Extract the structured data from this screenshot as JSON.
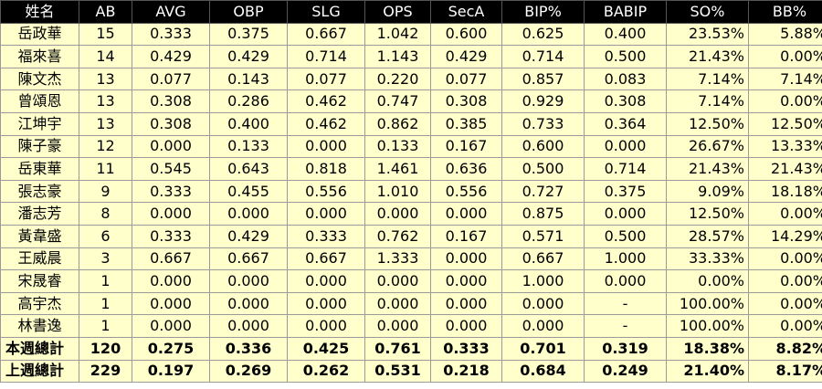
{
  "colors": {
    "header_bg": "#000000",
    "header_text": "#ffffff",
    "row_bg": "#ffffcc",
    "this_week_total_bg": "#1f497d",
    "last_week_total_bg": "#a5520a"
  },
  "table": {
    "headers": [
      "姓名",
      "AB",
      "AVG",
      "OBP",
      "SLG",
      "OPS",
      "SecA",
      "BIP%",
      "BABIP",
      "SO%",
      "BB%"
    ],
    "rows": [
      [
        "岳政華",
        "15",
        "0.333",
        "0.375",
        "0.667",
        "1.042",
        "0.600",
        "0.625",
        "0.400",
        "23.53%",
        "5.88%"
      ],
      [
        "福來喜",
        "14",
        "0.429",
        "0.429",
        "0.714",
        "1.143",
        "0.429",
        "0.714",
        "0.500",
        "21.43%",
        "0.00%"
      ],
      [
        "陳文杰",
        "13",
        "0.077",
        "0.143",
        "0.077",
        "0.220",
        "0.077",
        "0.857",
        "0.083",
        "7.14%",
        "7.14%"
      ],
      [
        "曾頌恩",
        "13",
        "0.308",
        "0.286",
        "0.462",
        "0.747",
        "0.308",
        "0.929",
        "0.308",
        "7.14%",
        "0.00%"
      ],
      [
        "江坤宇",
        "13",
        "0.308",
        "0.400",
        "0.462",
        "0.862",
        "0.385",
        "0.733",
        "0.364",
        "12.50%",
        "12.50%"
      ],
      [
        "陳子豪",
        "12",
        "0.000",
        "0.133",
        "0.000",
        "0.133",
        "0.167",
        "0.600",
        "0.000",
        "26.67%",
        "13.33%"
      ],
      [
        "岳東華",
        "11",
        "0.545",
        "0.643",
        "0.818",
        "1.461",
        "0.636",
        "0.500",
        "0.714",
        "21.43%",
        "21.43%"
      ],
      [
        "張志豪",
        "9",
        "0.333",
        "0.455",
        "0.556",
        "1.010",
        "0.556",
        "0.727",
        "0.375",
        "9.09%",
        "18.18%"
      ],
      [
        "潘志芳",
        "8",
        "0.000",
        "0.000",
        "0.000",
        "0.000",
        "0.000",
        "0.875",
        "0.000",
        "12.50%",
        "0.00%"
      ],
      [
        "黃韋盛",
        "6",
        "0.333",
        "0.429",
        "0.333",
        "0.762",
        "0.167",
        "0.571",
        "0.500",
        "28.57%",
        "14.29%"
      ],
      [
        "王威晨",
        "3",
        "0.667",
        "0.667",
        "0.667",
        "1.333",
        "0.000",
        "0.667",
        "1.000",
        "33.33%",
        "0.00%"
      ],
      [
        "宋晟睿",
        "1",
        "0.000",
        "0.000",
        "0.000",
        "0.000",
        "0.000",
        "1.000",
        "0.000",
        "0.00%",
        "0.00%"
      ],
      [
        "高宇杰",
        "1",
        "0.000",
        "0.000",
        "0.000",
        "0.000",
        "0.000",
        "0.000",
        "-",
        "100.00%",
        "0.00%"
      ],
      [
        "林書逸",
        "1",
        "0.000",
        "0.000",
        "0.000",
        "0.000",
        "0.000",
        "0.000",
        "-",
        "100.00%",
        "0.00%"
      ]
    ],
    "totals": [
      [
        "本週總計",
        "120",
        "0.275",
        "0.336",
        "0.425",
        "0.761",
        "0.333",
        "0.701",
        "0.319",
        "18.38%",
        "8.82%"
      ],
      [
        "上週總計",
        "229",
        "0.197",
        "0.269",
        "0.262",
        "0.531",
        "0.218",
        "0.684",
        "0.249",
        "21.40%",
        "8.17%"
      ]
    ]
  }
}
